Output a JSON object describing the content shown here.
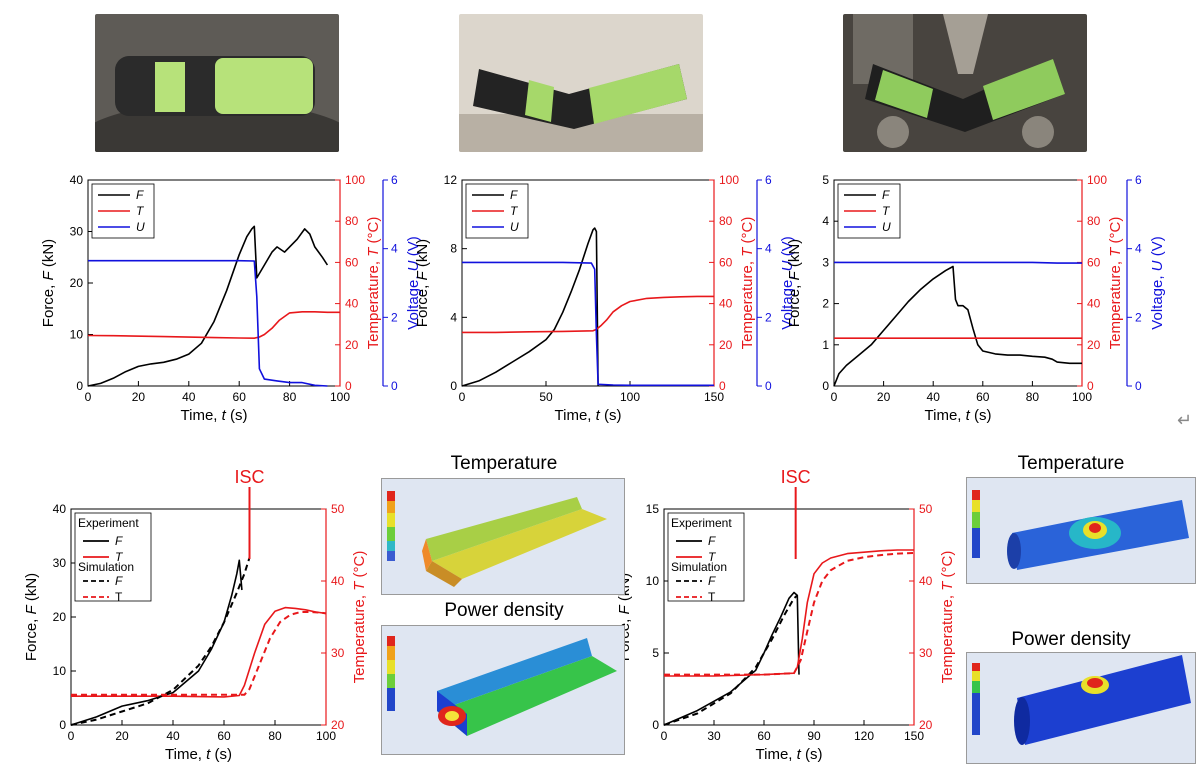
{
  "photos": [
    {
      "name": "cell-photo-flattened",
      "bg": "#5e5b56",
      "cell": "#2b2b2b",
      "wrap": "#b7e27a"
    },
    {
      "name": "cell-photo-bent",
      "bg": "#dcd6cc",
      "cell": "#232323",
      "wrap": "#a6d86a"
    },
    {
      "name": "cell-photo-three-point",
      "bg": "#48443f",
      "cell": "#1f1f1f",
      "wrap": "#8fcb5d"
    }
  ],
  "sim_titles": {
    "temperature_1": "Temperature",
    "power_1": "Power density",
    "temperature_2": "Temperature",
    "power_2": "Power density"
  },
  "enter_glyph": "↵",
  "colors": {
    "force": "#000000",
    "temperature": "#e8181b",
    "voltage": "#1111dd"
  },
  "chart_data": [
    {
      "type": "line",
      "xlabel": "Time, t (s)",
      "ylabel": "Force, F (kN)",
      "y2label": "Temperature, T (°C)",
      "y3label": "Voltage, U (V)",
      "xlim": [
        0,
        100
      ],
      "xticks": [
        0,
        20,
        40,
        60,
        80,
        100
      ],
      "ylim": [
        0,
        40
      ],
      "yticks": [
        0,
        10,
        20,
        30,
        40
      ],
      "y2lim": [
        0,
        100
      ],
      "y2ticks": [
        0,
        20,
        40,
        60,
        80,
        100
      ],
      "y3lim": [
        0,
        6
      ],
      "y3ticks": [
        0,
        2,
        4,
        6
      ],
      "legend": [
        "F",
        "T",
        "U"
      ],
      "series": [
        {
          "name": "F",
          "axis": "y",
          "x": [
            0,
            5,
            10,
            15,
            20,
            25,
            30,
            35,
            40,
            45,
            50,
            55,
            60,
            63,
            65,
            66,
            67,
            70,
            73,
            75,
            78,
            80,
            83,
            86,
            88,
            90,
            93,
            95
          ],
          "values": [
            0,
            0.5,
            1.5,
            2.8,
            3.8,
            4.3,
            4.6,
            5.2,
            6.2,
            8.3,
            12.5,
            18.5,
            25.5,
            29,
            30.5,
            31,
            21,
            23.5,
            26,
            27,
            26,
            27,
            28.5,
            30.5,
            29.5,
            27,
            25,
            23.5
          ]
        },
        {
          "name": "T",
          "axis": "y2",
          "x": [
            0,
            10,
            30,
            50,
            60,
            66,
            68,
            70,
            73,
            76,
            80,
            85,
            90,
            95,
            100
          ],
          "values": [
            24.5,
            24.4,
            24,
            23.5,
            23.3,
            23.2,
            23.8,
            25,
            28,
            32,
            35.5,
            36,
            36,
            35.8,
            35.8
          ]
        },
        {
          "name": "U",
          "axis": "y3",
          "x": [
            0,
            20,
            40,
            60,
            66,
            67,
            68,
            70,
            75,
            80,
            85,
            90,
            95
          ],
          "values": [
            3.65,
            3.65,
            3.65,
            3.65,
            3.64,
            2.6,
            0.5,
            0.2,
            0.15,
            0.1,
            0.1,
            0.02,
            0.0
          ]
        }
      ]
    },
    {
      "type": "line",
      "xlabel": "Time, t (s)",
      "ylabel": "Force, F (kN)",
      "y2label": "Temperature, T (°C)",
      "y3label": "Voltage, U (V)",
      "xlim": [
        0,
        150
      ],
      "xticks": [
        0,
        50,
        100,
        150
      ],
      "ylim": [
        0,
        12
      ],
      "yticks": [
        0,
        4,
        8,
        12
      ],
      "y2lim": [
        0,
        100
      ],
      "y2ticks": [
        0,
        20,
        40,
        60,
        80,
        100
      ],
      "y3lim": [
        0,
        6
      ],
      "y3ticks": [
        0,
        2,
        4,
        6
      ],
      "legend": [
        "F",
        "T",
        "U"
      ],
      "series": [
        {
          "name": "F",
          "axis": "y",
          "x": [
            0,
            10,
            20,
            30,
            40,
            50,
            55,
            60,
            65,
            70,
            75,
            78,
            79,
            80,
            81
          ],
          "values": [
            0,
            0.3,
            0.8,
            1.4,
            2.0,
            2.7,
            3.3,
            4.3,
            5.5,
            6.8,
            8.3,
            9.1,
            9.2,
            9.0,
            0
          ]
        },
        {
          "name": "T",
          "axis": "y2",
          "x": [
            0,
            20,
            40,
            60,
            78,
            80,
            83,
            86,
            90,
            95,
            100,
            110,
            120,
            130,
            140,
            150
          ],
          "values": [
            26,
            26,
            26.3,
            26.5,
            26.8,
            27.5,
            29.5,
            32,
            36,
            39,
            41,
            42.5,
            43,
            43.3,
            43.5,
            43.5
          ]
        },
        {
          "name": "U",
          "axis": "y3",
          "x": [
            0,
            20,
            40,
            60,
            77,
            79,
            80,
            81,
            90,
            100,
            120,
            150
          ],
          "values": [
            3.6,
            3.6,
            3.6,
            3.6,
            3.58,
            3.4,
            1.5,
            0.05,
            0.03,
            0.02,
            0.02,
            0.02
          ]
        }
      ]
    },
    {
      "type": "line",
      "xlabel": "Time, t (s)",
      "ylabel": "Force, F (kN)",
      "y2label": "Temperature, T (°C)",
      "y3label": "Voltage, U (V)",
      "xlim": [
        0,
        100
      ],
      "xticks": [
        0,
        20,
        40,
        60,
        80,
        100
      ],
      "ylim": [
        0,
        5
      ],
      "yticks": [
        0,
        1,
        2,
        3,
        4,
        5
      ],
      "y2lim": [
        0,
        100
      ],
      "y2ticks": [
        0,
        20,
        40,
        60,
        80,
        100
      ],
      "y3lim": [
        0,
        6
      ],
      "y3ticks": [
        0,
        2,
        4,
        6
      ],
      "legend": [
        "F",
        "T",
        "U"
      ],
      "series": [
        {
          "name": "F",
          "axis": "y",
          "x": [
            0,
            2,
            5,
            10,
            15,
            20,
            25,
            30,
            35,
            40,
            45,
            48,
            49,
            50,
            52,
            54,
            56,
            58,
            60,
            65,
            70,
            75,
            80,
            85,
            88,
            90,
            95,
            100
          ],
          "values": [
            0,
            0.3,
            0.5,
            0.75,
            1.0,
            1.35,
            1.7,
            2.05,
            2.35,
            2.6,
            2.8,
            2.9,
            2.1,
            1.95,
            1.95,
            1.85,
            1.4,
            1.0,
            0.85,
            0.78,
            0.75,
            0.75,
            0.72,
            0.7,
            0.65,
            0.58,
            0.55,
            0.55
          ]
        },
        {
          "name": "T",
          "axis": "y2",
          "x": [
            0,
            10,
            30,
            50,
            70,
            90,
            100
          ],
          "values": [
            23.2,
            23.2,
            23.2,
            23.2,
            23.2,
            23.2,
            23.2
          ]
        },
        {
          "name": "U",
          "axis": "y3",
          "x": [
            0,
            20,
            40,
            60,
            80,
            90,
            100
          ],
          "values": [
            3.6,
            3.6,
            3.6,
            3.6,
            3.6,
            3.58,
            3.58
          ]
        }
      ]
    },
    {
      "type": "line",
      "xlabel": "Time, t (s)",
      "ylabel": "Force, F (kN)",
      "y2label": "Temperature, T (°C)",
      "xlim": [
        0,
        100
      ],
      "xticks": [
        0,
        20,
        40,
        60,
        80,
        100
      ],
      "ylim": [
        0,
        40
      ],
      "yticks": [
        0,
        10,
        20,
        30,
        40
      ],
      "y2lim": [
        20,
        50
      ],
      "y2ticks": [
        20,
        30,
        40,
        50
      ],
      "annotation": {
        "text": "ISC",
        "x": 70
      },
      "legend_title_exp": "Experiment",
      "legend_title_sim": "Simulation",
      "legend": [
        "F",
        "T",
        "F",
        "T"
      ],
      "series": [
        {
          "name": "Experiment F",
          "axis": "y",
          "style": "solid",
          "x": [
            0,
            10,
            20,
            30,
            40,
            50,
            55,
            60,
            63,
            65,
            66,
            67
          ],
          "values": [
            0,
            1.5,
            3.5,
            4.5,
            6,
            10,
            14,
            19,
            24,
            28,
            30.5,
            25
          ]
        },
        {
          "name": "Experiment T",
          "axis": "y2",
          "style": "solid",
          "x": [
            0,
            20,
            40,
            60,
            66,
            68,
            72,
            76,
            80,
            84,
            88,
            92,
            96,
            100
          ],
          "values": [
            24,
            24,
            24,
            23.9,
            24.1,
            25.5,
            30,
            34,
            35.8,
            36.3,
            36.2,
            36,
            35.7,
            35.5
          ]
        },
        {
          "name": "Simulation F",
          "axis": "y",
          "style": "dashed",
          "x": [
            0,
            10,
            20,
            30,
            40,
            50,
            55,
            60,
            65,
            68,
            70
          ],
          "values": [
            0,
            1,
            2.5,
            4,
            6.5,
            11,
            14.5,
            19,
            24.5,
            28,
            31
          ]
        },
        {
          "name": "Simulation T",
          "axis": "y2",
          "style": "dashed",
          "x": [
            0,
            20,
            40,
            60,
            68,
            70,
            74,
            78,
            82,
            86,
            90,
            94,
            98,
            100
          ],
          "values": [
            24.2,
            24.2,
            24.2,
            24.2,
            24.2,
            25,
            28.5,
            32,
            34.3,
            35.3,
            35.7,
            35.7,
            35.6,
            35.5
          ]
        }
      ]
    },
    {
      "type": "line",
      "xlabel": "Time, t (s)",
      "ylabel": "Force, F (kN)",
      "y2label": "Temperature, T (°C)",
      "xlim": [
        0,
        150
      ],
      "xticks": [
        0,
        30,
        60,
        90,
        120,
        150
      ],
      "ylim": [
        0,
        15
      ],
      "yticks": [
        0,
        5,
        10,
        15
      ],
      "y2lim": [
        20,
        50
      ],
      "y2ticks": [
        20,
        30,
        40,
        50
      ],
      "annotation": {
        "text": "ISC",
        "x": 79
      },
      "legend_title_exp": "Experiment",
      "legend_title_sim": "Simulation",
      "legend": [
        "F",
        "T",
        "F",
        "T"
      ],
      "series": [
        {
          "name": "Experiment F",
          "axis": "y",
          "style": "solid",
          "x": [
            0,
            20,
            40,
            55,
            60,
            65,
            70,
            75,
            78,
            80,
            81
          ],
          "values": [
            0,
            1,
            2.3,
            3.8,
            5,
            6.3,
            7.5,
            8.8,
            9.2,
            9.0,
            3.5
          ]
        },
        {
          "name": "Experiment T",
          "axis": "y2",
          "style": "solid",
          "x": [
            0,
            30,
            60,
            78,
            80,
            83,
            86,
            90,
            95,
            100,
            110,
            120,
            130,
            140,
            150
          ],
          "values": [
            26.8,
            26.8,
            27,
            27.2,
            28,
            32,
            37,
            41,
            42.5,
            43.2,
            43.8,
            44,
            44.2,
            44.3,
            44.3
          ]
        },
        {
          "name": "Simulation F",
          "axis": "y",
          "style": "dashed",
          "x": [
            0,
            20,
            40,
            55,
            65,
            72,
            78,
            80
          ],
          "values": [
            0,
            0.8,
            2.2,
            4,
            6,
            7.6,
            8.8,
            9
          ]
        },
        {
          "name": "Simulation T",
          "axis": "y2",
          "style": "dashed",
          "x": [
            0,
            30,
            60,
            78,
            82,
            86,
            90,
            95,
            100,
            110,
            120,
            130,
            140,
            150
          ],
          "values": [
            27,
            27,
            27,
            27.2,
            29,
            33,
            37,
            40,
            41.5,
            42.8,
            43.3,
            43.6,
            43.8,
            43.9
          ]
        }
      ]
    }
  ]
}
